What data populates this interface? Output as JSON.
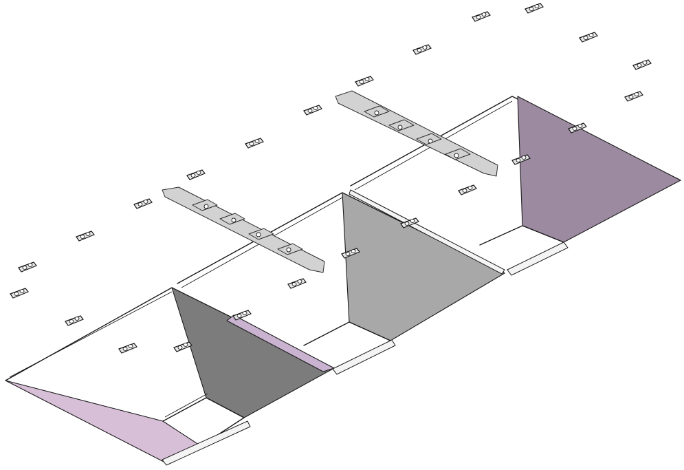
{
  "colors": {
    "background": "#ffffff",
    "outline": "#1a1a1a",
    "lavender_panel": "#d8bfd8",
    "dark_gray_panel": "#7c7c7c",
    "mid_gray_panel": "#a8a8a8",
    "mauve_panel": "#9c8aa0",
    "rail_metal": "#d2d2d2",
    "clip_metal": "#e9e9e9"
  },
  "parts": {
    "hopper_trays": 3,
    "connector_rails": 2,
    "loose_clips": 24,
    "mounted_clips": 9
  }
}
